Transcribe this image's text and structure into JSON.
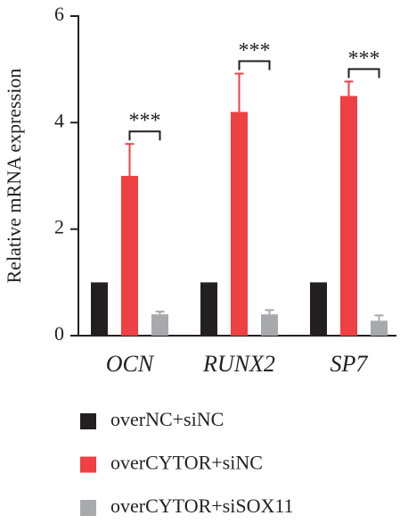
{
  "chart_data": {
    "type": "bar",
    "y_label": "Relative mRNA expression",
    "categories": [
      "OCN",
      "RUNX2",
      "SP7"
    ],
    "series": [
      {
        "name": "overNC+siNC",
        "color": "#231f20",
        "values": [
          1,
          1,
          1
        ]
      },
      {
        "name": "overCYTOR+siNC",
        "color": "#ef4043",
        "values": [
          3.0,
          4.2,
          4.5
        ],
        "errors": [
          0.6,
          0.72,
          0.27
        ]
      },
      {
        "name": "overCYTOR+siSOX11",
        "color": "#a7a9ac",
        "values": [
          0.4,
          0.4,
          0.28
        ],
        "errors": [
          0.05,
          0.08,
          0.1
        ]
      }
    ],
    "significance": [
      "***",
      "***",
      "***"
    ],
    "ylim": [
      0,
      6
    ],
    "yticks": [
      0,
      2,
      4,
      6
    ]
  }
}
